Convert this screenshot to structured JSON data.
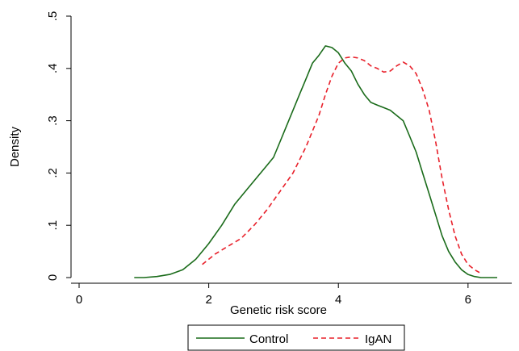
{
  "chart_data": {
    "type": "line",
    "xlabel": "Genetic risk score",
    "ylabel": "Density",
    "xlim": [
      0,
      6.5
    ],
    "ylim": [
      0,
      0.5
    ],
    "xticks": [
      0,
      2,
      4,
      6
    ],
    "xtick_labels": [
      "0",
      "2",
      "4",
      "6"
    ],
    "yticks": [
      0,
      0.1,
      0.2,
      0.3,
      0.4,
      0.5
    ],
    "ytick_labels": [
      "0",
      ".1",
      ".2",
      ".3",
      ".4",
      ".5"
    ],
    "grid": false,
    "legend_position": "bottom",
    "series": [
      {
        "name": "Control",
        "color": "#1a6b1a",
        "dash": "solid",
        "x": [
          0.85,
          1.0,
          1.2,
          1.4,
          1.6,
          1.8,
          2.0,
          2.2,
          2.4,
          2.6,
          2.8,
          2.9,
          3.0,
          3.1,
          3.2,
          3.4,
          3.5,
          3.6,
          3.7,
          3.8,
          3.9,
          4.0,
          4.1,
          4.2,
          4.3,
          4.4,
          4.5,
          4.6,
          4.7,
          4.8,
          4.9,
          5.0,
          5.1,
          5.2,
          5.3,
          5.4,
          5.5,
          5.6,
          5.7,
          5.8,
          5.9,
          6.0,
          6.1,
          6.2,
          6.3,
          6.45
        ],
        "y": [
          0.0,
          0.0,
          0.002,
          0.006,
          0.015,
          0.035,
          0.065,
          0.1,
          0.14,
          0.17,
          0.2,
          0.215,
          0.23,
          0.26,
          0.29,
          0.35,
          0.38,
          0.41,
          0.425,
          0.443,
          0.44,
          0.43,
          0.41,
          0.395,
          0.37,
          0.35,
          0.335,
          0.33,
          0.325,
          0.32,
          0.31,
          0.3,
          0.27,
          0.24,
          0.2,
          0.16,
          0.12,
          0.08,
          0.05,
          0.03,
          0.015,
          0.006,
          0.002,
          0.0,
          0.0,
          0.0
        ]
      },
      {
        "name": "IgAN",
        "color": "#e8202a",
        "dash": "dashed",
        "x": [
          1.9,
          2.1,
          2.3,
          2.5,
          2.7,
          2.9,
          3.1,
          3.3,
          3.5,
          3.7,
          3.8,
          3.9,
          4.0,
          4.1,
          4.2,
          4.3,
          4.4,
          4.5,
          4.6,
          4.7,
          4.8,
          4.9,
          5.0,
          5.1,
          5.2,
          5.3,
          5.4,
          5.5,
          5.6,
          5.7,
          5.8,
          5.9,
          6.0,
          6.1,
          6.2
        ],
        "y": [
          0.025,
          0.045,
          0.06,
          0.075,
          0.1,
          0.13,
          0.165,
          0.2,
          0.25,
          0.31,
          0.35,
          0.385,
          0.41,
          0.42,
          0.422,
          0.42,
          0.415,
          0.405,
          0.4,
          0.393,
          0.395,
          0.405,
          0.412,
          0.405,
          0.39,
          0.36,
          0.32,
          0.26,
          0.19,
          0.13,
          0.08,
          0.045,
          0.025,
          0.015,
          0.008
        ]
      }
    ]
  }
}
